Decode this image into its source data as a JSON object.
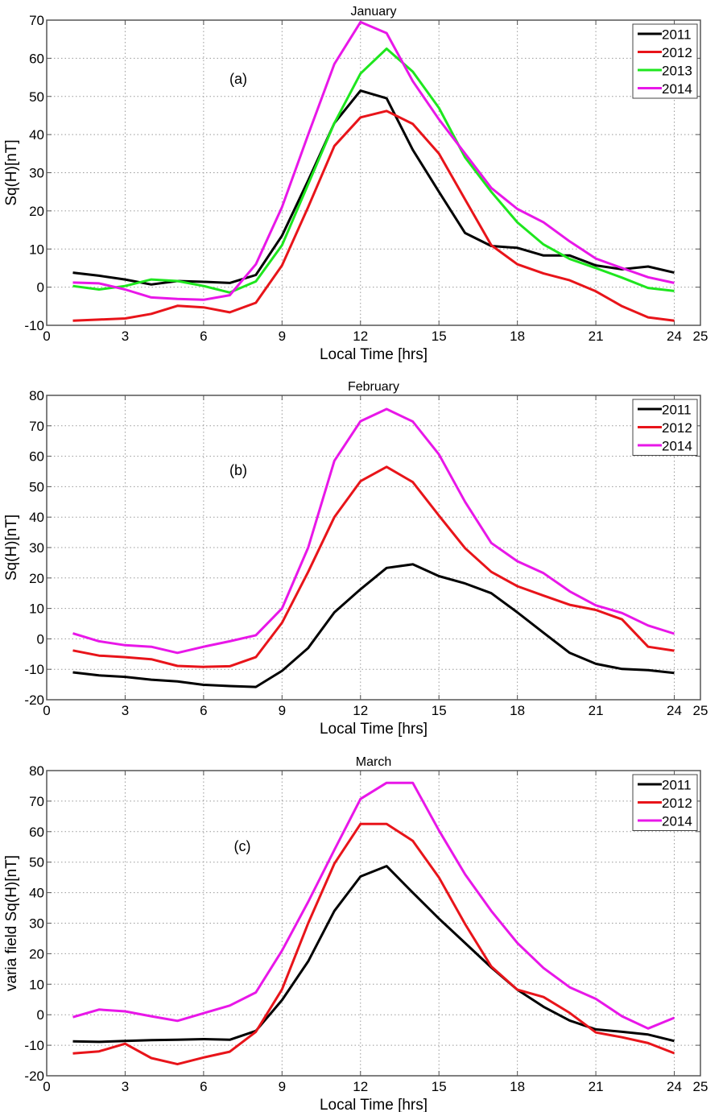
{
  "chart_data": [
    {
      "type": "line",
      "title": "January",
      "annotation": "(a)",
      "xlabel": "Local Time [hrs]",
      "ylabel": "Sq(H)[nT]",
      "xlim": [
        0,
        25
      ],
      "ylim": [
        -10,
        70
      ],
      "xticks": [
        0,
        3,
        6,
        9,
        12,
        15,
        18,
        21,
        24,
        25
      ],
      "yticks": [
        -10,
        0,
        10,
        20,
        30,
        40,
        50,
        60,
        70
      ],
      "grid": true,
      "legend_position": "top-right",
      "x": [
        1,
        2,
        3,
        4,
        5,
        6,
        7,
        8,
        9,
        10,
        11,
        12,
        13,
        14,
        15,
        16,
        17,
        18,
        19,
        20,
        21,
        22,
        23,
        24
      ],
      "series": [
        {
          "name": "2011",
          "color": "#000000",
          "values": [
            3.8,
            3.0,
            2.0,
            0.7,
            1.6,
            1.4,
            1.1,
            3.2,
            13.5,
            28,
            43,
            51.5,
            49.5,
            36,
            25,
            14.2,
            10.8,
            10.3,
            8.3,
            8.3,
            5.7,
            4.7,
            5.4,
            3.8
          ]
        },
        {
          "name": "2012",
          "color": "#e8141a",
          "values": [
            -8.8,
            -8.5,
            -8.2,
            -7,
            -4.9,
            -5.3,
            -6.6,
            -4.1,
            5.7,
            21,
            37,
            44.5,
            46.2,
            42.8,
            35,
            23,
            11,
            6,
            3.6,
            1.8,
            -1.1,
            -5,
            -7.9,
            -8.8
          ]
        },
        {
          "name": "2013",
          "color": "#1ee61e",
          "values": [
            0.3,
            -0.6,
            0.3,
            2,
            1.6,
            0.3,
            -1.4,
            1.5,
            11,
            27,
            43,
            56,
            62.5,
            56.5,
            47,
            34,
            25,
            17,
            11.2,
            7.4,
            5,
            2.5,
            -0.2,
            -1
          ]
        },
        {
          "name": "2014",
          "color": "#e817e8",
          "values": [
            1.2,
            1,
            -0.6,
            -2.7,
            -3.1,
            -3.3,
            -2.1,
            6,
            21,
            40,
            58.5,
            69.5,
            66.6,
            54,
            44,
            35,
            26,
            20.5,
            17,
            12,
            7.5,
            5,
            2.6,
            1.1
          ]
        }
      ]
    },
    {
      "type": "line",
      "title": "February",
      "annotation": "(b)",
      "xlabel": "Local Time [hrs]",
      "ylabel": "Sq(H)[nT]",
      "xlim": [
        0,
        25
      ],
      "ylim": [
        -20,
        80
      ],
      "xticks": [
        0,
        3,
        6,
        9,
        12,
        15,
        18,
        21,
        24,
        25
      ],
      "yticks": [
        -20,
        -10,
        0,
        10,
        20,
        30,
        40,
        50,
        60,
        70,
        80
      ],
      "grid": true,
      "legend_position": "top-right",
      "x": [
        1,
        2,
        3,
        4,
        5,
        6,
        7,
        8,
        9,
        10,
        11,
        12,
        13,
        14,
        15,
        16,
        17,
        18,
        19,
        20,
        21,
        22,
        23,
        24
      ],
      "series": [
        {
          "name": "2011",
          "color": "#000000",
          "values": [
            -11,
            -12,
            -12.5,
            -13.4,
            -14,
            -15.1,
            -15.5,
            -15.8,
            -10.5,
            -3,
            8.7,
            16.3,
            23.3,
            24.5,
            20.6,
            18.2,
            15,
            8.7,
            2,
            -4.6,
            -8.2,
            -9.9,
            -10.3,
            -11.2
          ]
        },
        {
          "name": "2012",
          "color": "#e8141a",
          "values": [
            -3.8,
            -5.5,
            -6,
            -6.7,
            -8.9,
            -9.2,
            -9,
            -6,
            5.3,
            22,
            40,
            51.8,
            56.5,
            51.5,
            40.5,
            29.8,
            22,
            17.3,
            14.2,
            11.2,
            9.5,
            6.4,
            -2.6,
            -3.9
          ]
        },
        {
          "name": "2014",
          "color": "#e817e8",
          "values": [
            1.8,
            -0.8,
            -2.1,
            -2.6,
            -4.6,
            -2.6,
            -0.8,
            1.2,
            10,
            30,
            58.5,
            71.5,
            75.5,
            71.4,
            60.6,
            45,
            31.5,
            25.5,
            21.6,
            15.6,
            11,
            8.5,
            4.4,
            1.7
          ]
        }
      ]
    },
    {
      "type": "line",
      "title": "March",
      "annotation": "(c)",
      "xlabel": "Local Time [hrs]",
      "ylabel": "varia field Sq(H)[nT]",
      "xlim": [
        0,
        25
      ],
      "ylim": [
        -20,
        80
      ],
      "xticks": [
        0,
        3,
        6,
        9,
        12,
        15,
        18,
        21,
        24,
        25
      ],
      "yticks": [
        -20,
        -10,
        0,
        10,
        20,
        30,
        40,
        50,
        60,
        70,
        80
      ],
      "grid": true,
      "legend_position": "top-right",
      "x": [
        1,
        2,
        3,
        4,
        5,
        6,
        7,
        8,
        9,
        10,
        11,
        12,
        13,
        14,
        15,
        16,
        17,
        18,
        19,
        20,
        21,
        22,
        23,
        24
      ],
      "series": [
        {
          "name": "2011",
          "color": "#000000",
          "values": [
            -8.7,
            -8.9,
            -8.6,
            -8.3,
            -8.2,
            -8,
            -8.2,
            -5.3,
            4.8,
            17.5,
            34,
            45.3,
            48.7,
            40,
            31.5,
            23.5,
            15.5,
            8.2,
            2.6,
            -1.9,
            -4.8,
            -5.6,
            -6.5,
            -8.6
          ]
        },
        {
          "name": "2012",
          "color": "#e8141a",
          "values": [
            -12.7,
            -12,
            -9.5,
            -14.2,
            -16.2,
            -14,
            -12.1,
            -5.6,
            8.3,
            30,
            49.5,
            62.5,
            62.5,
            57,
            45,
            29.7,
            15.8,
            8.2,
            5.8,
            0.6,
            -5.8,
            -7.4,
            -9.3,
            -12.6
          ]
        },
        {
          "name": "2014",
          "color": "#e817e8",
          "values": [
            -0.8,
            1.7,
            1.1,
            -0.5,
            -2,
            0.5,
            3,
            7.3,
            21,
            37,
            54,
            70.7,
            76,
            76,
            60.4,
            46,
            34,
            23.5,
            15.3,
            9,
            5.2,
            -0.5,
            -4.5,
            -1
          ]
        }
      ]
    }
  ]
}
